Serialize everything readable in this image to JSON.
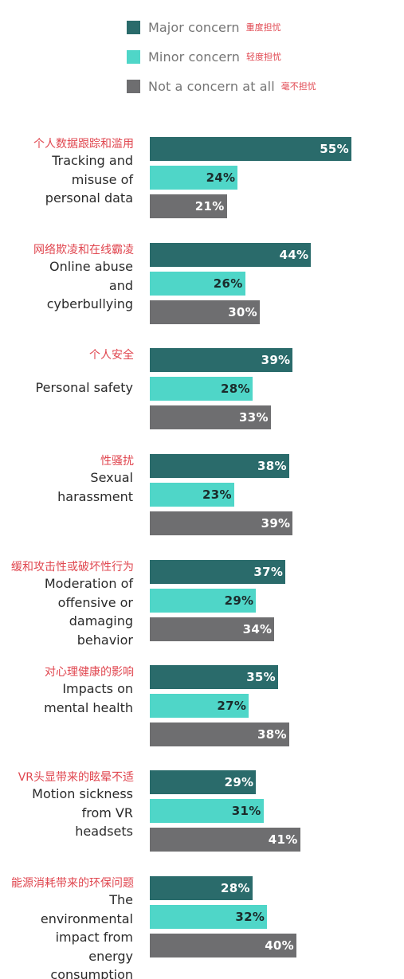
{
  "legend": [
    {
      "label": "Major concern",
      "label_zh": "重度担忧",
      "color": "#2a6b6b"
    },
    {
      "label": "Minor concern",
      "label_zh": "轻度担忧",
      "color": "#4fd6c8"
    },
    {
      "label": "Not a concern at all",
      "label_zh": "毫不担忧",
      "color": "#6e6e70"
    }
  ],
  "chart_data": {
    "type": "bar",
    "orientation": "horizontal",
    "grouped": true,
    "value_suffix": "%",
    "groups": [
      {
        "label_zh": "个人数据跟踪和滥用",
        "label": "Tracking and\nmisuse of\npersonal data",
        "values": [
          55,
          24,
          21
        ]
      },
      {
        "label_zh": "网络欺凌和在线霸凌",
        "label": "Online abuse\nand\ncyberbullying",
        "values": [
          44,
          26,
          30
        ]
      },
      {
        "label_zh": "个人安全",
        "label": "Personal safety",
        "values": [
          39,
          28,
          33
        ]
      },
      {
        "label_zh": "性骚扰",
        "label": "Sexual\nharassment",
        "values": [
          38,
          23,
          39
        ]
      },
      {
        "label_zh": "缓和攻击性或破坏性行为",
        "label": "Moderation of\noffensive or\ndamaging\nbehavior",
        "values": [
          37,
          29,
          34
        ]
      },
      {
        "label_zh": "对心理健康的影响",
        "label": "Impacts on\nmental health",
        "values": [
          35,
          27,
          38
        ]
      },
      {
        "label_zh": "VR头显带来的眩晕不适",
        "label": "Motion sickness\nfrom VR\nheadsets",
        "values": [
          29,
          31,
          41
        ]
      },
      {
        "label_zh": "能源消耗带来的环保问题",
        "label": "The\nenvironmental\nimpact from\nenergy\nconsumption",
        "values": [
          28,
          32,
          40
        ]
      }
    ],
    "series": [
      {
        "name": "Major concern",
        "color": "#2a6b6b",
        "label_color": "#ffffff"
      },
      {
        "name": "Minor concern",
        "color": "#4fd6c8",
        "label_color": "#1b2b2b"
      },
      {
        "name": "Not a concern at all",
        "color": "#6e6e70",
        "label_color": "#ffffff"
      }
    ]
  }
}
